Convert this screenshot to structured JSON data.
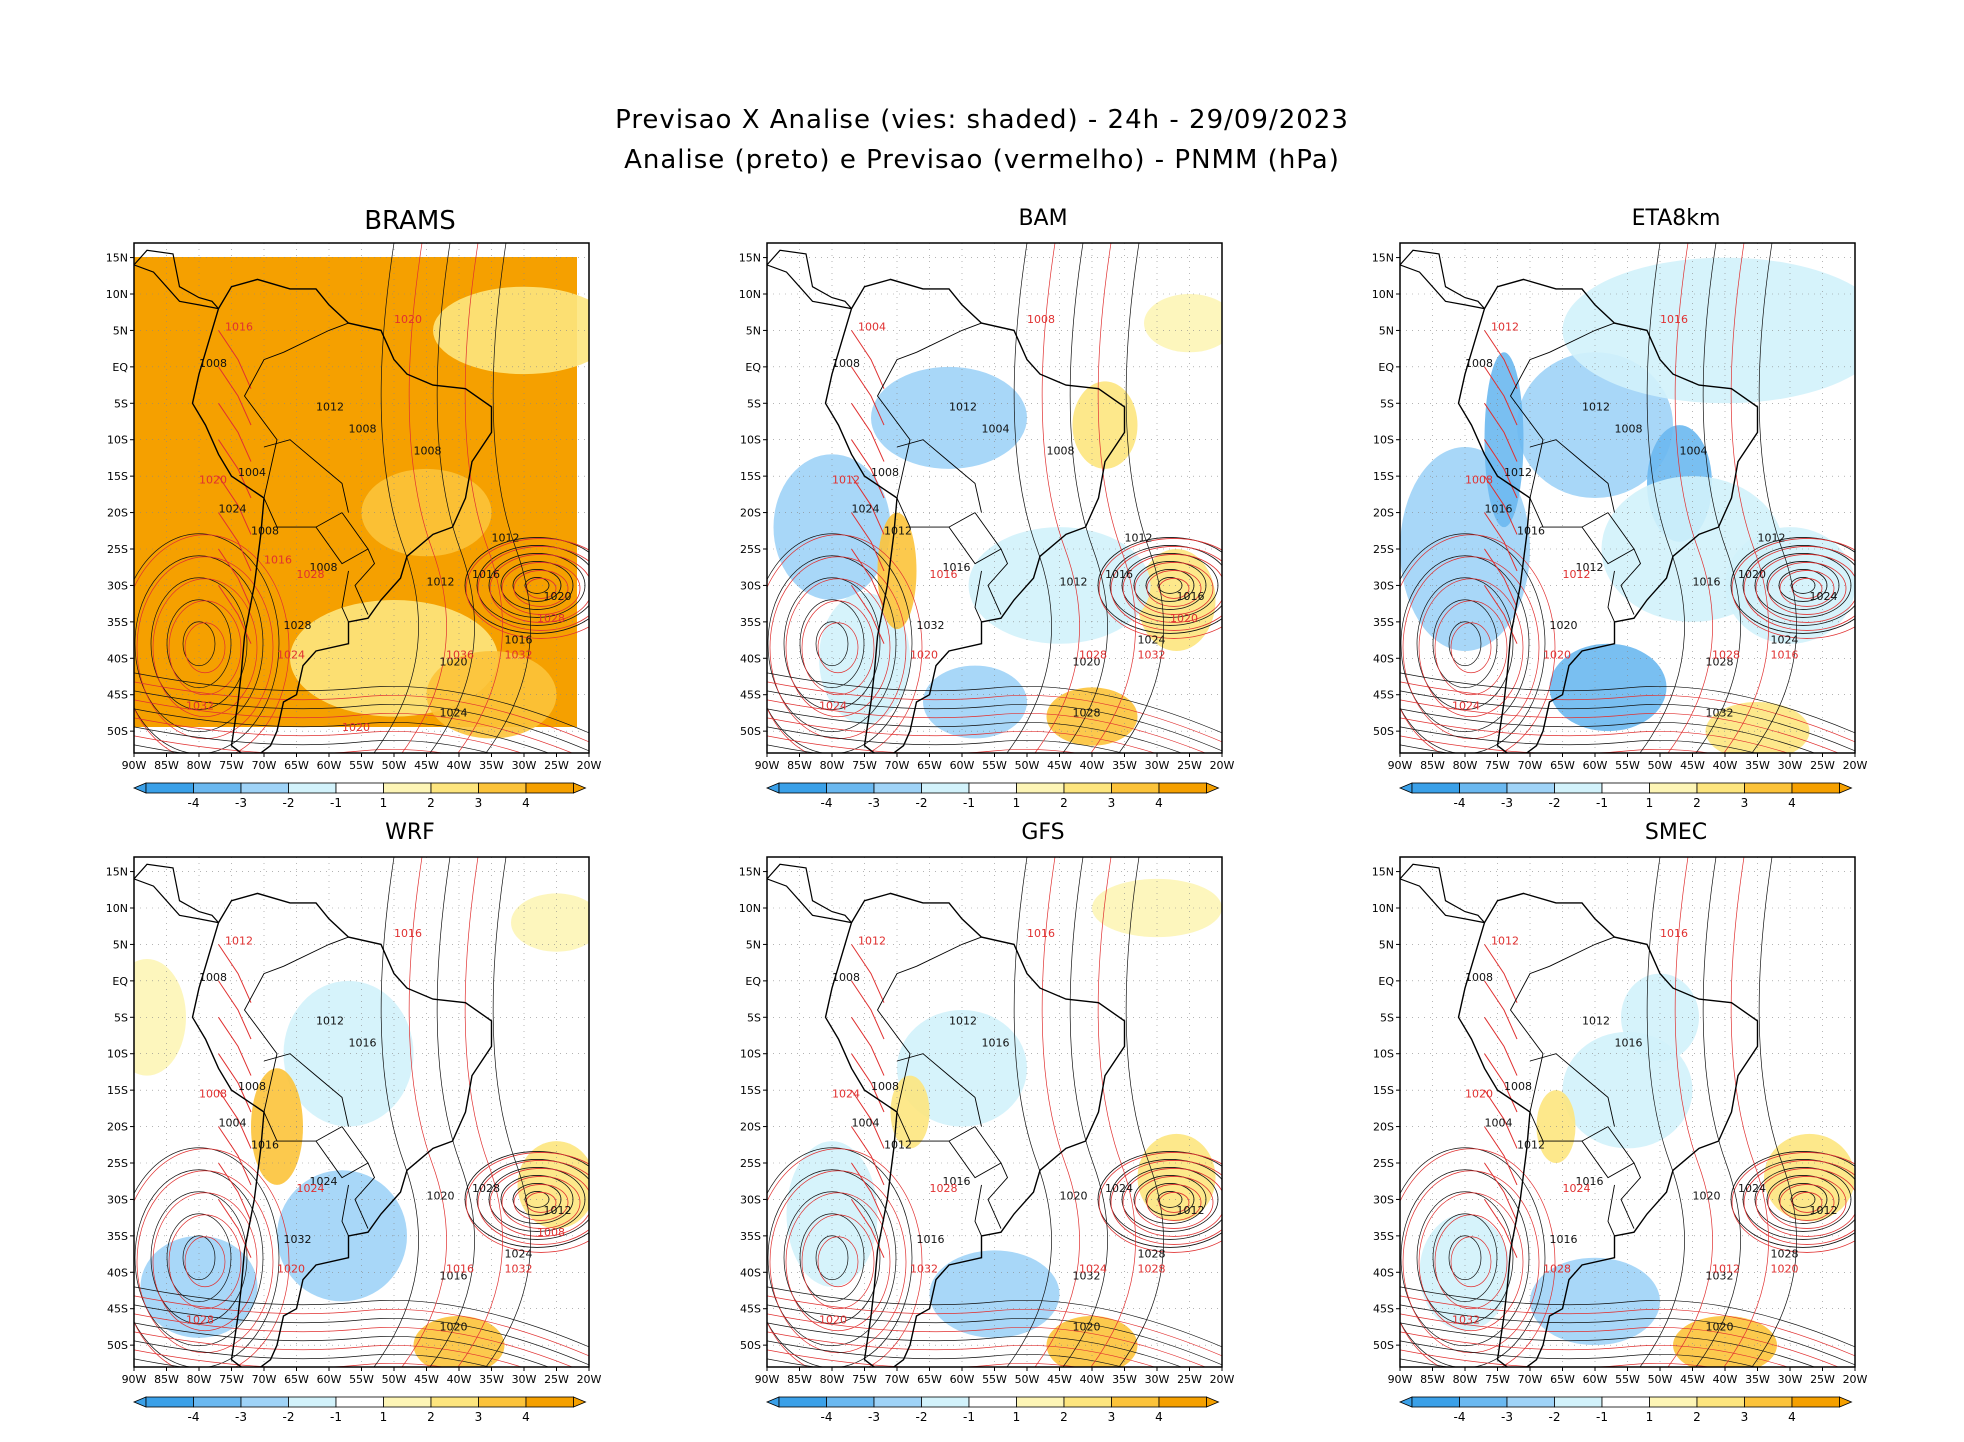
{
  "header": {
    "title_line1": "Previsao X Analise (vies: shaded) - 24h - 29/09/2023",
    "title_line2": "Analise (preto) e Previsao (vermelho) - PNMM (hPa)"
  },
  "colors": {
    "neg4": "#3aa0e8",
    "neg3": "#6ab8f0",
    "neg2": "#9fd3f7",
    "neg1": "#d2f2fb",
    "zero": "#ffffff",
    "pos1": "#fdf5b6",
    "pos2": "#fde57e",
    "pos3": "#fcc33a",
    "pos4": "#f5a000",
    "analysis_contour": "#111111",
    "forecast_contour": "#e03030"
  },
  "colorbar": {
    "labels": [
      "-4",
      "-3",
      "-2",
      "-1",
      "1",
      "2",
      "3",
      "4"
    ]
  },
  "lat_ticks": [
    "15N",
    "10N",
    "5N",
    "EQ",
    "5S",
    "10S",
    "15S",
    "20S",
    "25S",
    "30S",
    "35S",
    "40S",
    "45S",
    "50S"
  ],
  "lon_ticks": [
    "90W",
    "85W",
    "80W",
    "75W",
    "70W",
    "65W",
    "60W",
    "55W",
    "50W",
    "45W",
    "40W",
    "35W",
    "30W",
    "25W",
    "20W"
  ],
  "panels": [
    {
      "id": "brams",
      "title": "BRAMS",
      "black_labels": [
        "1008",
        "1012",
        "1008",
        "1004",
        "1008",
        "1008",
        "1012",
        "1016",
        "1016",
        "1020",
        "1024",
        "1028",
        "1024",
        "1020",
        "1008",
        "1012"
      ],
      "red_labels": [
        "1016",
        "1020",
        "1020",
        "1028",
        "1024",
        "1032",
        "1036",
        "1032",
        "1028",
        "1020",
        "1016"
      ]
    },
    {
      "id": "bam",
      "title": "BAM",
      "black_labels": [
        "1008",
        "1012",
        "1004",
        "1008",
        "1012",
        "1016",
        "1012",
        "1016",
        "1024",
        "1020",
        "1028",
        "1032",
        "1024",
        "1016",
        "1008",
        "1012"
      ],
      "red_labels": [
        "1004",
        "1008",
        "1012",
        "1016",
        "1020",
        "1024",
        "1028",
        "1032",
        "1020"
      ]
    },
    {
      "id": "eta8km",
      "title": "ETA8km",
      "black_labels": [
        "1008",
        "1012",
        "1008",
        "1012",
        "1016",
        "1012",
        "1016",
        "1020",
        "1024",
        "1028",
        "1032",
        "1020",
        "1016",
        "1024",
        "1004",
        "1012"
      ],
      "red_labels": [
        "1012",
        "1016",
        "1008",
        "1012",
        "1020",
        "1024",
        "1028",
        "1016"
      ]
    },
    {
      "id": "wrf",
      "title": "WRF",
      "black_labels": [
        "1008",
        "1012",
        "1016",
        "1008",
        "1016",
        "1024",
        "1020",
        "1028",
        "1024",
        "1016",
        "1020",
        "1032",
        "1004",
        "1012"
      ],
      "red_labels": [
        "1012",
        "1016",
        "1008",
        "1024",
        "1020",
        "1028",
        "1016",
        "1032",
        "1008"
      ]
    },
    {
      "id": "gfs",
      "title": "GFS",
      "black_labels": [
        "1008",
        "1012",
        "1016",
        "1008",
        "1012",
        "1016",
        "1020",
        "1024",
        "1028",
        "1032",
        "1020",
        "1016",
        "1004",
        "1012"
      ],
      "red_labels": [
        "1012",
        "1016",
        "1024",
        "1028",
        "1032",
        "1020",
        "1024",
        "1028"
      ]
    },
    {
      "id": "smec",
      "title": "SMEC",
      "black_labels": [
        "1008",
        "1012",
        "1016",
        "1008",
        "1012",
        "1016",
        "1020",
        "1024",
        "1028",
        "1032",
        "1020",
        "1016",
        "1004",
        "1012"
      ],
      "red_labels": [
        "1012",
        "1016",
        "1020",
        "1024",
        "1028",
        "1032",
        "1012",
        "1020"
      ]
    }
  ]
}
